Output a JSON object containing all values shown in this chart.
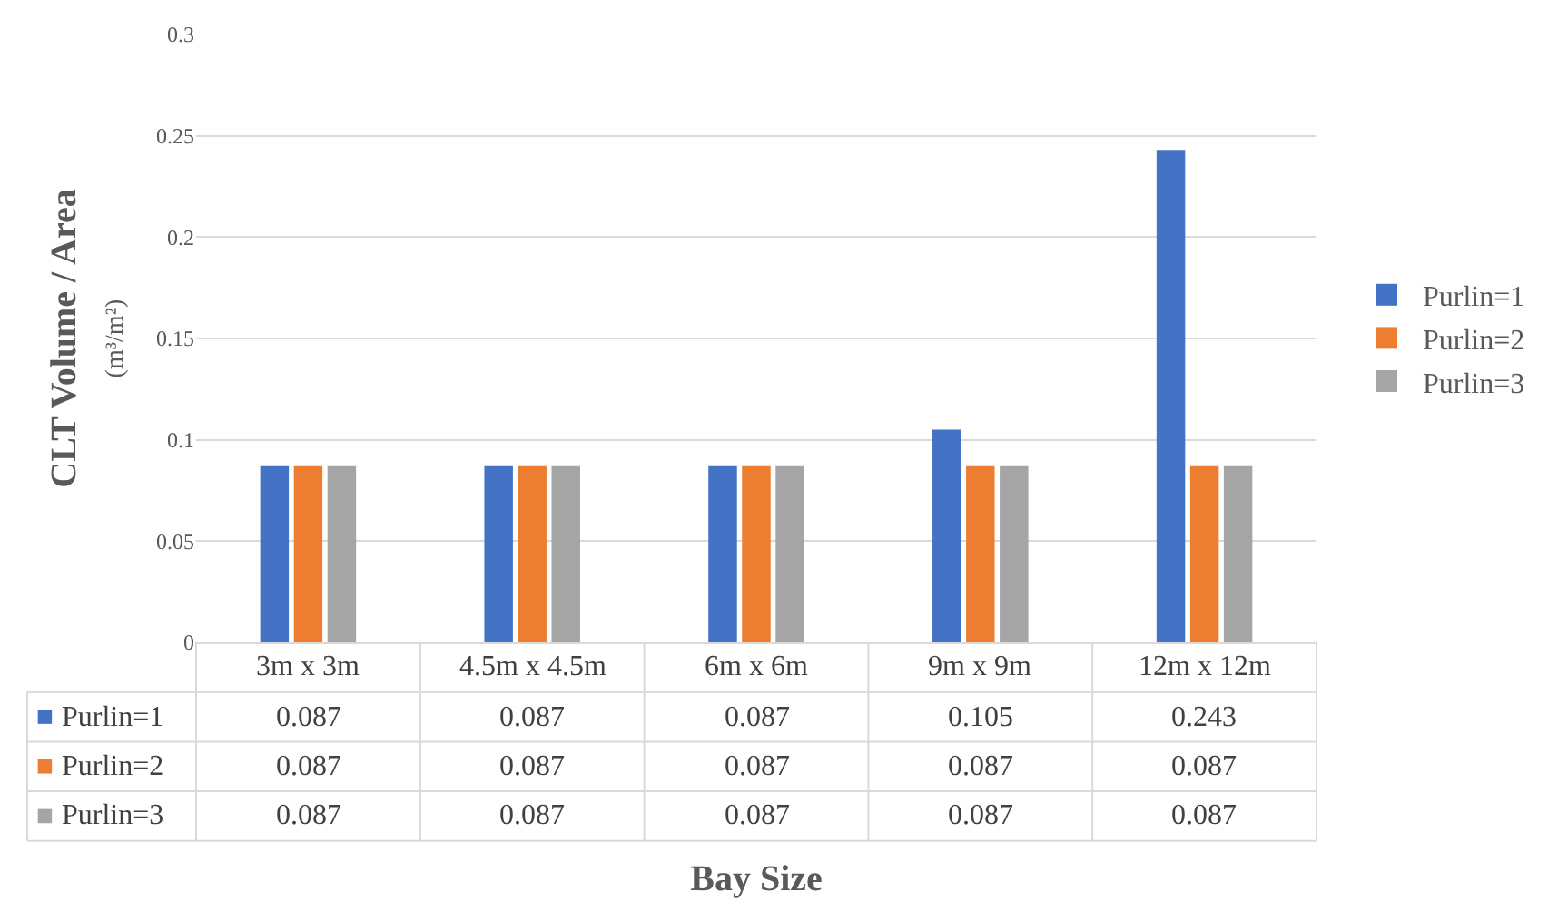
{
  "chart_data": {
    "type": "bar",
    "xlabel": "Bay Size",
    "ylabel": "CLT Volume / Area\n(m³/m²)",
    "categories": [
      "3m x 3m",
      "4.5m x 4.5m",
      "6m x 6m",
      "9m x 9m",
      "12m x 12m"
    ],
    "series": [
      {
        "name": "Purlin=1",
        "color": "#4472c4",
        "values": [
          0.087,
          0.087,
          0.087,
          0.105,
          0.243
        ]
      },
      {
        "name": "Purlin=2",
        "color": "#ed7d31",
        "values": [
          0.087,
          0.087,
          0.087,
          0.087,
          0.087
        ]
      },
      {
        "name": "Purlin=3",
        "color": "#a5a5a5",
        "values": [
          0.087,
          0.087,
          0.087,
          0.087,
          0.087
        ]
      }
    ],
    "ylim": [
      0,
      0.3
    ],
    "yticks": [
      0,
      0.05,
      0.1,
      0.15,
      0.2,
      0.25,
      0.3
    ],
    "grid": "y",
    "legend": "right",
    "data_labels": true
  }
}
